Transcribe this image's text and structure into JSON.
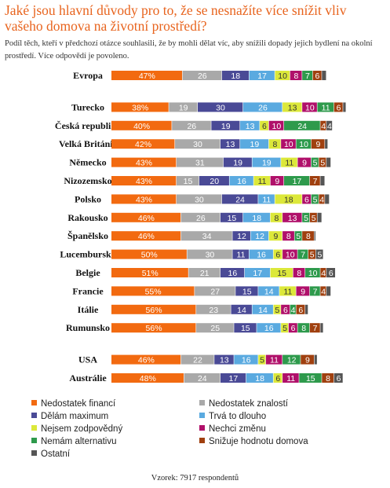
{
  "title": "Jaké jsou hlavní důvody pro to, že se nesnažíte více snížit vliv vašeho domova na životní prostředí?",
  "subtitle": "Podíl těch, kteří v předchozí otázce souhlasili, že by mohli dělat víc, aby snížili dopady jejich bydlení na okolní prostředí. Více odpovědí je povoleno.",
  "footer": "Vzorek: 7917 respondentů",
  "chart_data": {
    "type": "bar",
    "stacked": true,
    "orientation": "horizontal",
    "categories": [
      "Evropa",
      "Turecko",
      "Česká republika",
      "Velká Británie",
      "Německo",
      "Nizozemsko",
      "Polsko",
      "Rakousko",
      "Španělsko",
      "Lucembursko",
      "Belgie",
      "Francie",
      "Itálie",
      "Rumunsko",
      "USA",
      "Austrálie"
    ],
    "series": [
      {
        "name": "Nedostatek financí",
        "color": "#f26a10",
        "values": [
          47,
          38,
          40,
          42,
          43,
          43,
          43,
          46,
          46,
          50,
          51,
          55,
          56,
          56,
          46,
          48
        ]
      },
      {
        "name": "Nedostatek znalostí",
        "color": "#a9a9a9",
        "values": [
          26,
          19,
          26,
          30,
          31,
          15,
          30,
          26,
          34,
          30,
          21,
          27,
          23,
          25,
          22,
          24
        ]
      },
      {
        "name": "Dělám maximum",
        "color": "#4a4a96",
        "values": [
          18,
          30,
          19,
          13,
          19,
          20,
          24,
          15,
          12,
          11,
          16,
          15,
          14,
          15,
          13,
          17
        ]
      },
      {
        "name": "Trvá to dlouho",
        "color": "#5aaae0",
        "values": [
          17,
          26,
          13,
          19,
          19,
          16,
          11,
          18,
          12,
          16,
          17,
          14,
          14,
          16,
          16,
          18
        ]
      },
      {
        "name": "Nejsem zodpovědný",
        "color": "#dce83a",
        "values": [
          10,
          13,
          6,
          8,
          11,
          11,
          18,
          8,
          9,
          6,
          15,
          11,
          5,
          5,
          5,
          6
        ]
      },
      {
        "name": "Nechci změnu",
        "color": "#b0106a",
        "values": [
          8,
          10,
          10,
          10,
          9,
          9,
          6,
          13,
          8,
          10,
          8,
          9,
          6,
          6,
          11,
          11
        ]
      },
      {
        "name": "Nemám alternativu",
        "color": "#2e9a4c",
        "values": [
          7,
          11,
          24,
          10,
          5,
          17,
          5,
          5,
          5,
          7,
          10,
          7,
          4,
          8,
          12,
          15
        ]
      },
      {
        "name": "Snižuje hodnotu domova",
        "color": "#a0400f",
        "values": [
          6,
          6,
          4,
          9,
          5,
          7,
          4,
          5,
          8,
          5,
          4,
          4,
          6,
          7,
          9,
          8
        ]
      },
      {
        "name": "Ostatní",
        "color": "#555555",
        "values": [
          3,
          2,
          4,
          2,
          3,
          3,
          3,
          3,
          1,
          5,
          6,
          3,
          2,
          2,
          2,
          6
        ]
      }
    ],
    "groups": [
      [
        "Evropa"
      ],
      [
        "Turecko",
        "Česká republika",
        "Velká Británie",
        "Německo",
        "Nizozemsko",
        "Polsko",
        "Rakousko",
        "Španělsko",
        "Lucembursko",
        "Belgie",
        "Francie",
        "Itálie",
        "Rumunsko"
      ],
      [
        "USA",
        "Austrálie"
      ]
    ],
    "value_suffix_first_series": "%",
    "xlim": [
      0,
      170
    ],
    "grid": false,
    "legend_position": "bottom"
  }
}
